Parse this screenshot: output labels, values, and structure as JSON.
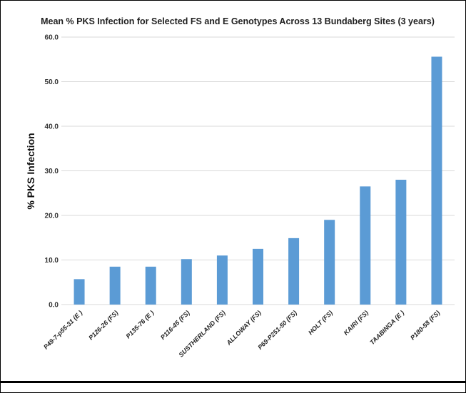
{
  "chart_data": {
    "type": "bar",
    "title": "Mean % PKS Infection for Selected FS and E Genotypes Across 13 Bundaberg Sites (3 years)",
    "xlabel": "",
    "ylabel": "% PKS Infection",
    "categories": [
      "P49-7-p55-31 (E )",
      "P126-26 (FS)",
      "P135-76 (E )",
      "P116-45 (FS)",
      "SUSTHERLAND (FS)",
      "ALLOWAY (FS)",
      "P69-P251-50 (FS)",
      "HOLT (FS)",
      "KAIRI (FS)",
      "TAABINGA (E )",
      "P180-58 (FS)"
    ],
    "values": [
      5.7,
      8.5,
      8.5,
      10.2,
      11.0,
      12.5,
      14.9,
      19.0,
      26.5,
      28.0,
      55.6
    ],
    "yticks": [
      "0.0",
      "10.0",
      "20.0",
      "30.0",
      "40.0",
      "50.0",
      "60.0"
    ],
    "ylim": [
      0,
      60
    ],
    "grid": true,
    "legend": "none",
    "bar_color": "#5b9bd5",
    "grid_color": "#d9d9d9"
  }
}
